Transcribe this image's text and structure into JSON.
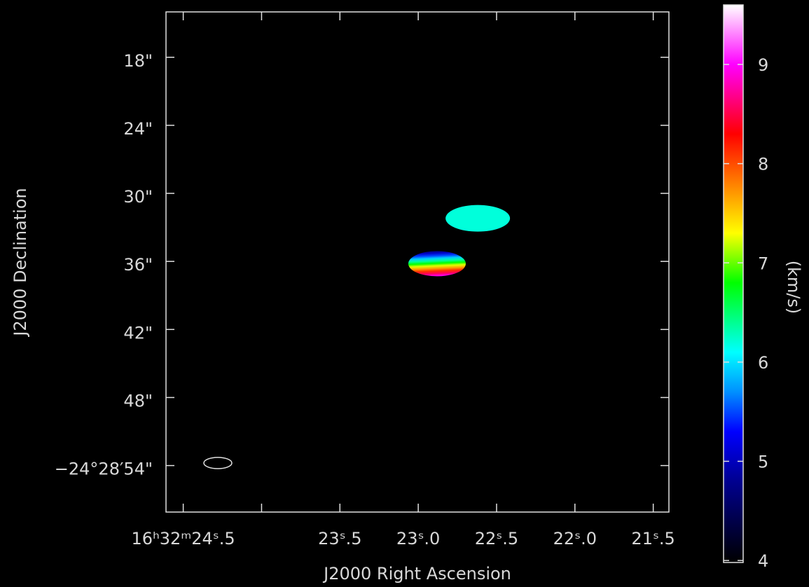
{
  "chart_data": {
    "type": "image",
    "xlabel": "J2000 Right Ascension",
    "ylabel": "J2000 Declination",
    "xlim": [
      24.61,
      21.4
    ],
    "xticks": [
      {
        "value": 24.5,
        "label": "16ʰ32ᵐ24ˢ.5"
      },
      {
        "value": 24.0,
        "label": null
      },
      {
        "value": 23.5,
        "label": "23ˢ.5"
      },
      {
        "value": 23.0,
        "label": "23ˢ.0"
      },
      {
        "value": 22.5,
        "label": "22ˢ.5"
      },
      {
        "value": 22.0,
        "label": "22ˢ.0"
      },
      {
        "value": 21.5,
        "label": "21ˢ.5"
      }
    ],
    "ylim": [
      58.1,
      14.0
    ],
    "yticks": [
      {
        "value": 18,
        "label": "18\""
      },
      {
        "value": 24,
        "label": "24\""
      },
      {
        "value": 30,
        "label": "30\""
      },
      {
        "value": 36,
        "label": "36\""
      },
      {
        "value": 42,
        "label": "42\""
      },
      {
        "value": 48,
        "label": "48\""
      },
      {
        "value": 54,
        "label": "−24°28′54\""
      }
    ],
    "colorbar_label": "(km/s)",
    "clim": [
      3.98,
      9.6
    ],
    "cticks": [
      4,
      5,
      6,
      7,
      8,
      9
    ],
    "colormap": [
      {
        "value": 3.98,
        "color": "#000000"
      },
      {
        "value": 4.8,
        "color": "#000090"
      },
      {
        "value": 5.3,
        "color": "#0000ff"
      },
      {
        "value": 5.7,
        "color": "#0090ff"
      },
      {
        "value": 6.1,
        "color": "#00ffff"
      },
      {
        "value": 6.8,
        "color": "#00ff00"
      },
      {
        "value": 7.3,
        "color": "#ffff00"
      },
      {
        "value": 7.8,
        "color": "#ff8000"
      },
      {
        "value": 8.3,
        "color": "#ff0000"
      },
      {
        "value": 9.0,
        "color": "#ff00ff"
      },
      {
        "value": 9.6,
        "color": "#ffffff"
      }
    ],
    "sources": [
      {
        "ra": 22.62,
        "dec": 32.2,
        "velocity": 6.2
      },
      {
        "ra": 22.88,
        "dec": 36.2,
        "velocity_range": [
          4.6,
          9.0
        ]
      }
    ]
  }
}
